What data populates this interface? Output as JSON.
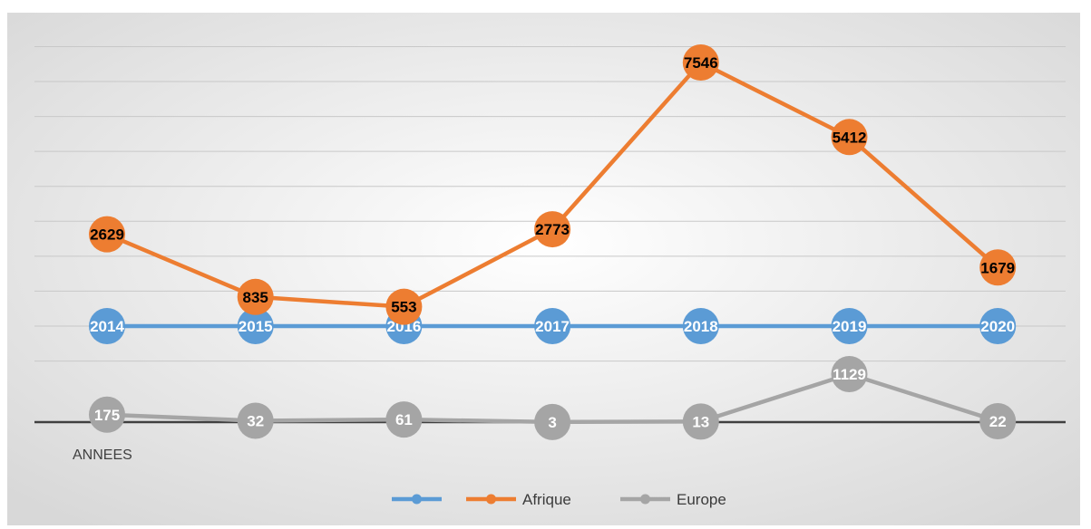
{
  "chart_data": {
    "type": "line",
    "title": "",
    "xlabel": "ANNEES",
    "ylabel": "",
    "ylim": [
      -2000,
      8000
    ],
    "grid": true,
    "legend_position": "bottom",
    "x": [
      0,
      1,
      2,
      3,
      4,
      5,
      6
    ],
    "series": [
      {
        "name": "",
        "color": "#5b9bd5",
        "values": [
          0,
          0,
          0,
          0,
          0,
          0,
          0
        ],
        "labels": [
          "2014",
          "2015",
          "2016",
          "2017",
          "2018",
          "2019",
          "2020"
        ]
      },
      {
        "name": "Afrique",
        "color": "#ed7d31",
        "values": [
          2629,
          835,
          553,
          2773,
          7546,
          5412,
          1679
        ],
        "labels": [
          "2629",
          "835",
          "553",
          "2773",
          "7546",
          "5412",
          "1679"
        ]
      },
      {
        "name": "Europe",
        "color": "#a5a5a5",
        "values": [
          175,
          32,
          61,
          3,
          13,
          1129,
          22
        ],
        "labels": [
          "175",
          "32",
          "61",
          "3",
          "13",
          "1129",
          "22"
        ]
      }
    ]
  }
}
